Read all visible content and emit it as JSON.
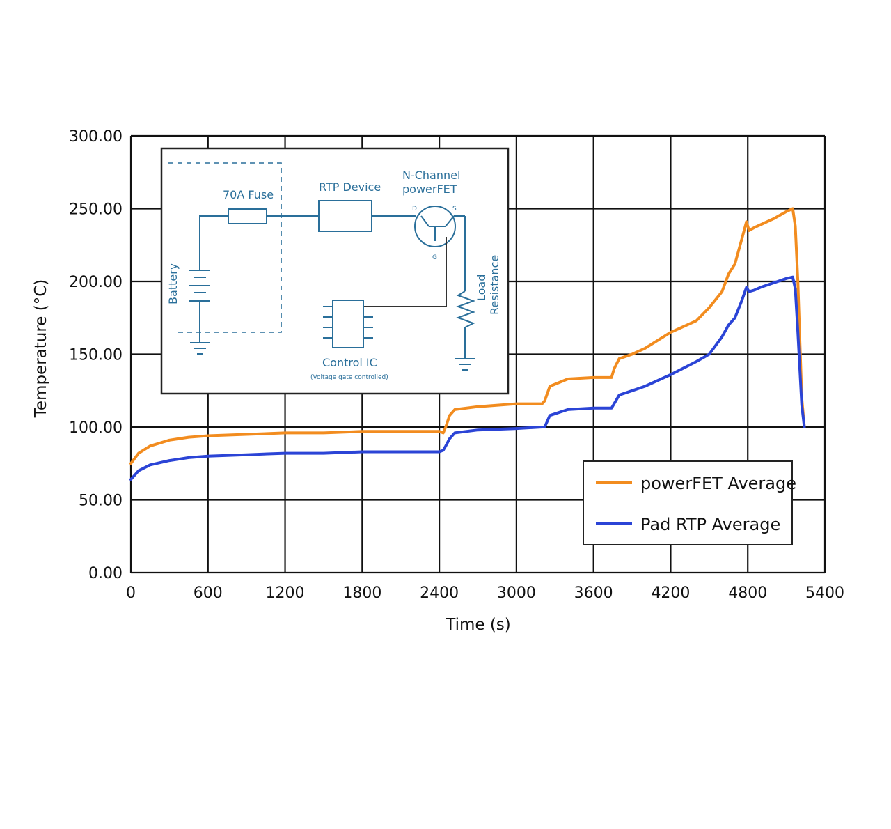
{
  "chart_data": {
    "type": "line",
    "xlabel": "Time (s)",
    "ylabel": "Temperature (°C)",
    "xlim": [
      0,
      5400
    ],
    "ylim": [
      0,
      300
    ],
    "xticks": [
      "0",
      "600",
      "1200",
      "1800",
      "2400",
      "3000",
      "3600",
      "4200",
      "4800",
      "5400"
    ],
    "yticks": [
      "0.00",
      "50.00",
      "100.00",
      "150.00",
      "200.00",
      "250.00",
      "300.00"
    ],
    "grid": true,
    "legend_position": "lower-right",
    "series": [
      {
        "name": "powerFET Average",
        "color": "#f28c1f",
        "x": [
          0,
          60,
          150,
          300,
          450,
          600,
          900,
          1200,
          1500,
          1800,
          2100,
          2400,
          2430,
          2450,
          2480,
          2520,
          2700,
          3000,
          3200,
          3220,
          3260,
          3400,
          3600,
          3700,
          3740,
          3760,
          3800,
          3900,
          4000,
          4200,
          4400,
          4500,
          4600,
          4650,
          4700,
          4750,
          4790,
          4810,
          4850,
          4900,
          5000,
          5100,
          5150,
          5170,
          5190,
          5220,
          5240
        ],
        "y": [
          75,
          82,
          87,
          91,
          93,
          94,
          95,
          96,
          96,
          97,
          97,
          97,
          96,
          100,
          108,
          112,
          114,
          116,
          116,
          118,
          128,
          133,
          134,
          134,
          134,
          140,
          147,
          150,
          154,
          165,
          173,
          182,
          193,
          205,
          212,
          228,
          241,
          235,
          237,
          239,
          243,
          248,
          250,
          238,
          200,
          120,
          100
        ]
      },
      {
        "name": "Pad RTP Average",
        "color": "#2b44d6",
        "x": [
          0,
          60,
          150,
          300,
          450,
          600,
          900,
          1200,
          1500,
          1800,
          2100,
          2400,
          2430,
          2450,
          2480,
          2520,
          2700,
          3000,
          3200,
          3220,
          3260,
          3400,
          3600,
          3700,
          3740,
          3760,
          3800,
          3900,
          4000,
          4200,
          4400,
          4500,
          4600,
          4650,
          4700,
          4750,
          4790,
          4810,
          4850,
          4900,
          5000,
          5100,
          5150,
          5170,
          5190,
          5220,
          5240
        ],
        "y": [
          64,
          70,
          74,
          77,
          79,
          80,
          81,
          82,
          82,
          83,
          83,
          83,
          84,
          87,
          92,
          96,
          98,
          99,
          100,
          100,
          108,
          112,
          113,
          113,
          113,
          116,
          122,
          125,
          128,
          136,
          145,
          150,
          162,
          170,
          175,
          186,
          196,
          193,
          194,
          196,
          199,
          202,
          203,
          195,
          165,
          115,
          100
        ]
      }
    ]
  },
  "inset": {
    "fuse_label": "70A Fuse",
    "rtp_label": "RTP Device",
    "fet_label_1": "N-Channel",
    "fet_label_2": "powerFET",
    "battery_label": "Battery",
    "load_label_1": "Load",
    "load_label_2": "Resistance",
    "control_label": "Control IC",
    "control_sublabel": "(Voltage gate controlled)",
    "pin_d": "D",
    "pin_s": "S",
    "pin_g": "G"
  }
}
